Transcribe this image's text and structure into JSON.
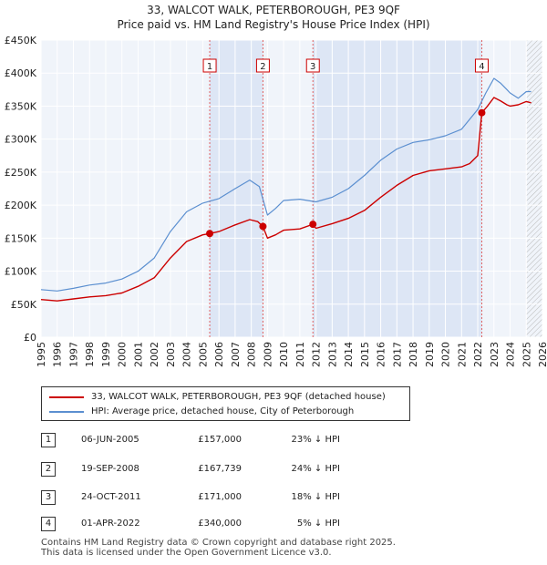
{
  "title_line1": "33, WALCOT WALK, PETERBOROUGH, PE3 9QF",
  "title_line2": "Price paid vs. HM Land Registry's House Price Index (HPI)",
  "legend": [
    {
      "label": "33, WALCOT WALK, PETERBOROUGH, PE3 9QF (detached house)",
      "color": "#cc0000"
    },
    {
      "label": "HPI: Average price, detached house, City of Peterborough",
      "color": "#5b8fd0"
    }
  ],
  "transactions": [
    {
      "num": "1",
      "date": "06-JUN-2005",
      "price": "£157,000",
      "hpi": "23% ↓ HPI"
    },
    {
      "num": "2",
      "date": "19-SEP-2008",
      "price": "£167,739",
      "hpi": "24% ↓ HPI"
    },
    {
      "num": "3",
      "date": "24-OCT-2011",
      "price": "£171,000",
      "hpi": "18% ↓ HPI"
    },
    {
      "num": "4",
      "date": "01-APR-2022",
      "price": "£340,000",
      "hpi": "5% ↓ HPI"
    }
  ],
  "footer_line1": "Contains HM Land Registry data © Crown copyright and database right 2025.",
  "footer_line2": "This data is licensed under the Open Government Licence v3.0.",
  "chart_data": {
    "type": "line",
    "title": "33, WALCOT WALK, PETERBOROUGH, PE3 9QF",
    "subtitle": "Price paid vs. HM Land Registry's House Price Index (HPI)",
    "xlim": [
      1995,
      2026
    ],
    "ylim": [
      0,
      450000
    ],
    "x_ticks": [
      1995,
      1996,
      1997,
      1998,
      1999,
      2000,
      2001,
      2002,
      2003,
      2004,
      2005,
      2006,
      2007,
      2008,
      2009,
      2010,
      2011,
      2012,
      2013,
      2014,
      2015,
      2016,
      2017,
      2018,
      2019,
      2020,
      2021,
      2022,
      2023,
      2024,
      2025,
      2026
    ],
    "y_ticks": [
      0,
      50000,
      100000,
      150000,
      200000,
      250000,
      300000,
      350000,
      400000,
      450000
    ],
    "y_tick_labels": [
      "£0",
      "£50K",
      "£100K",
      "£150K",
      "£200K",
      "£250K",
      "£300K",
      "£350K",
      "£400K",
      "£450K"
    ],
    "grid": true,
    "sales": [
      {
        "num": "1",
        "x": 2005.43,
        "y": 157000
      },
      {
        "num": "2",
        "x": 2008.72,
        "y": 167739
      },
      {
        "num": "3",
        "x": 2011.81,
        "y": 171000
      },
      {
        "num": "4",
        "x": 2022.25,
        "y": 340000
      }
    ],
    "series": [
      {
        "name": "HPI: Average price, detached house, City of Peterborough",
        "color": "#5b8fd0",
        "x": [
          1995,
          1996,
          1997,
          1998,
          1999,
          2000,
          2001,
          2002,
          2003,
          2004,
          2005,
          2006,
          2007,
          2007.9,
          2008.5,
          2009,
          2009.5,
          2010,
          2011,
          2012,
          2013,
          2014,
          2015,
          2016,
          2017,
          2018,
          2019,
          2020,
          2021,
          2021.5,
          2022,
          2022.5,
          2023,
          2023.4,
          2023.8,
          2024,
          2024.5,
          2025,
          2025.3
        ],
        "y": [
          72000,
          70000,
          74000,
          79000,
          82000,
          88000,
          100000,
          120000,
          160000,
          190000,
          203000,
          210000,
          225000,
          238000,
          228000,
          185000,
          195000,
          207000,
          209000,
          205000,
          212000,
          225000,
          245000,
          268000,
          285000,
          295000,
          299000,
          305000,
          315000,
          330000,
          345000,
          370000,
          392000,
          385000,
          375000,
          370000,
          362000,
          372000,
          372000
        ]
      },
      {
        "name": "33, WALCOT WALK, PETERBOROUGH, PE3 9QF (detached house)",
        "color": "#cc0000",
        "x": [
          1995,
          1996,
          1997,
          1998,
          1999,
          2000,
          2001,
          2002,
          2003,
          2004,
          2005,
          2005.43,
          2006,
          2007,
          2007.9,
          2008.4,
          2008.72,
          2009,
          2009.5,
          2010,
          2011,
          2011.81,
          2012,
          2013,
          2014,
          2015,
          2016,
          2017,
          2018,
          2019,
          2020,
          2021,
          2021.5,
          2022,
          2022.25,
          2022.6,
          2023,
          2023.4,
          2023.8,
          2024,
          2024.5,
          2025,
          2025.3
        ],
        "y": [
          57000,
          55000,
          58000,
          61000,
          63000,
          67000,
          77000,
          90000,
          120000,
          145000,
          155000,
          157000,
          160000,
          170000,
          178000,
          175000,
          167739,
          150000,
          155000,
          162000,
          164000,
          171000,
          165000,
          172000,
          180000,
          192000,
          212000,
          230000,
          245000,
          252000,
          255000,
          258000,
          263000,
          275000,
          340000,
          350000,
          363000,
          358000,
          352000,
          350000,
          352000,
          357000,
          355000
        ]
      }
    ]
  }
}
